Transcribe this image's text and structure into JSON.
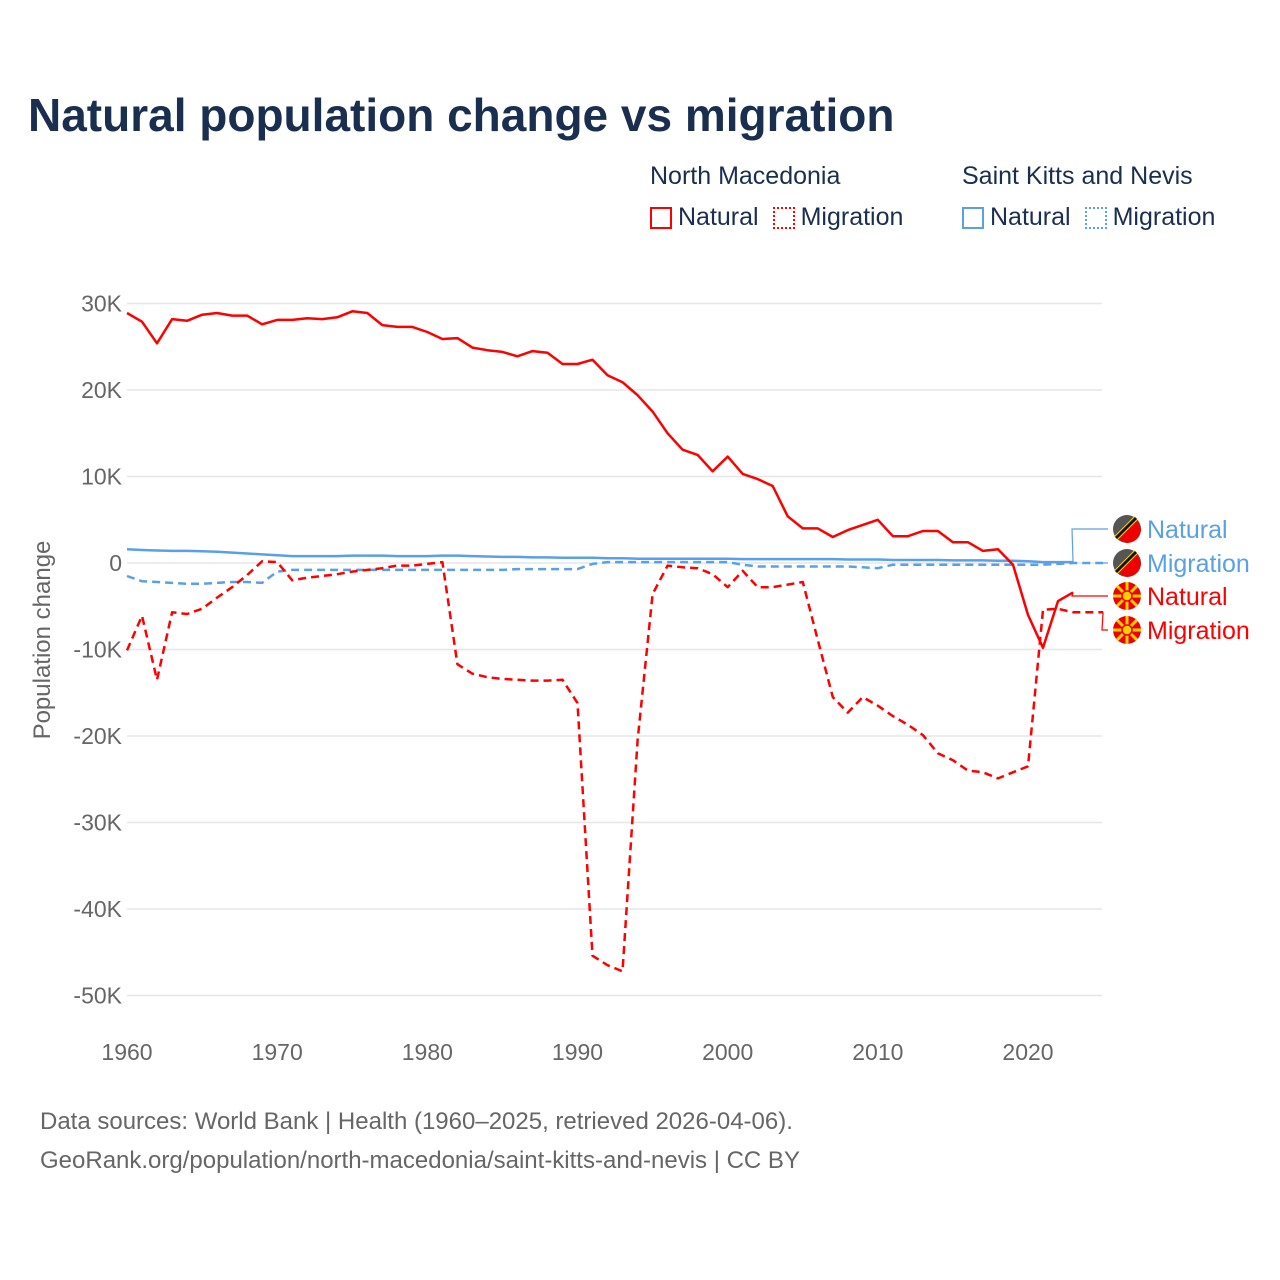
{
  "title": "Natural population change vs migration",
  "legend": [
    {
      "country": "North Macedonia",
      "items": [
        "Natural",
        "Migration"
      ],
      "color": "#ff0000"
    },
    {
      "country": "Saint Kitts and Nevis",
      "items": [
        "Natural",
        "Migration"
      ],
      "color": "#5aa0e6"
    }
  ],
  "footer": {
    "line1": "Data sources: World Bank | Health (1960–2025, retrieved 2026-04-06).",
    "line2": "GeoRank.org/population/north-macedonia/saint-kitts-and-nevis | CC BY"
  },
  "chart_data": {
    "type": "line",
    "ylabel": "Population change",
    "xlim": [
      1960,
      2025
    ],
    "ylim": [
      -50000,
      30000
    ],
    "xticks": [
      1960,
      1970,
      1980,
      1990,
      2000,
      2010,
      2020
    ],
    "xtick_labels": [
      "1960",
      "1970",
      "1980",
      "1990",
      "2000",
      "2010",
      "2020"
    ],
    "yticks": [
      30000,
      20000,
      10000,
      0,
      -10000,
      -20000,
      -30000,
      -40000,
      -50000
    ],
    "ytick_labels": [
      "30K",
      "20K",
      "10K",
      "0",
      "-10K",
      "-20K",
      "-30K",
      "-40K",
      "-50K"
    ],
    "grid": true,
    "series": [
      {
        "name": "North Macedonia Natural",
        "label": "Natural",
        "color": "#ff0000",
        "dash": false,
        "flag": "north-macedonia",
        "start": 1960,
        "values": [
          28900,
          27900,
          25400,
          28200,
          28000,
          28700,
          28900,
          28600,
          28600,
          27600,
          28100,
          28100,
          28300,
          28200,
          28400,
          29100,
          28900,
          27500,
          27300,
          27300,
          26700,
          25900,
          26000,
          24900,
          24600,
          24400,
          23900,
          24500,
          24300,
          23000,
          23000,
          23500,
          21700,
          20900,
          19400,
          17500,
          15000,
          13100,
          12500,
          10600,
          12300,
          10300,
          9700,
          8900,
          5400,
          4000,
          4000,
          3000,
          3800,
          4400,
          5000,
          3100,
          3100,
          3700,
          3700,
          2400,
          2400,
          1400,
          1600,
          -200,
          -6000,
          -9800,
          -4400,
          -3400
        ]
      },
      {
        "name": "North Macedonia Migration",
        "label": "Migration",
        "color": "#ff0000",
        "dash": true,
        "flag": "north-macedonia",
        "start": 1960,
        "values": [
          -10100,
          -6100,
          -13500,
          -5700,
          -5900,
          -5300,
          -4000,
          -2800,
          -1400,
          200,
          100,
          -2000,
          -1700,
          -1500,
          -1300,
          -1000,
          -800,
          -600,
          -300,
          -300,
          -100,
          100,
          -11700,
          -12800,
          -13200,
          -13400,
          -13500,
          -13600,
          -13600,
          -13500,
          -16200,
          -45400,
          -46500,
          -47200,
          -20500,
          -3600,
          -300,
          -500,
          -600,
          -1300,
          -2800,
          -900,
          -2800,
          -2800,
          -2500,
          -2200,
          -8900,
          -15500,
          -17300,
          -15500,
          -16500,
          -17700,
          -18700,
          -19900,
          -22000,
          -22800,
          -24000,
          -24200,
          -24900,
          -24200,
          -23500,
          -5400,
          -5300,
          -5700,
          -5700,
          -5700
        ]
      },
      {
        "name": "Saint Kitts and Nevis Natural",
        "label": "Natural",
        "color": "#5aa0e6",
        "dash": false,
        "flag": "saint-kitts-and-nevis",
        "start": 1960,
        "values": [
          1600,
          1500,
          1450,
          1400,
          1400,
          1350,
          1300,
          1200,
          1100,
          1000,
          900,
          800,
          800,
          800,
          800,
          850,
          850,
          850,
          800,
          800,
          800,
          850,
          850,
          800,
          750,
          700,
          700,
          650,
          650,
          600,
          600,
          600,
          550,
          550,
          500,
          500,
          500,
          500,
          500,
          500,
          500,
          450,
          450,
          450,
          450,
          450,
          450,
          450,
          400,
          400,
          400,
          350,
          350,
          350,
          350,
          300,
          300,
          300,
          250,
          250,
          200,
          100,
          100,
          100
        ]
      },
      {
        "name": "Saint Kitts and Nevis Migration",
        "label": "Migration",
        "color": "#5aa0e6",
        "dash": true,
        "flag": "saint-kitts-and-nevis",
        "start": 1960,
        "values": [
          -1500,
          -2100,
          -2200,
          -2300,
          -2400,
          -2400,
          -2300,
          -2200,
          -2200,
          -2300,
          -1000,
          -800,
          -800,
          -800,
          -800,
          -800,
          -800,
          -800,
          -800,
          -800,
          -800,
          -800,
          -800,
          -800,
          -800,
          -800,
          -700,
          -700,
          -700,
          -700,
          -700,
          -100,
          100,
          100,
          100,
          100,
          100,
          100,
          100,
          100,
          100,
          -200,
          -400,
          -400,
          -400,
          -400,
          -400,
          -400,
          -400,
          -500,
          -600,
          -200,
          -200,
          -200,
          -200,
          -200,
          -200,
          -200,
          -200,
          -200,
          -200,
          -200,
          -100,
          0,
          0,
          0
        ]
      }
    ]
  }
}
